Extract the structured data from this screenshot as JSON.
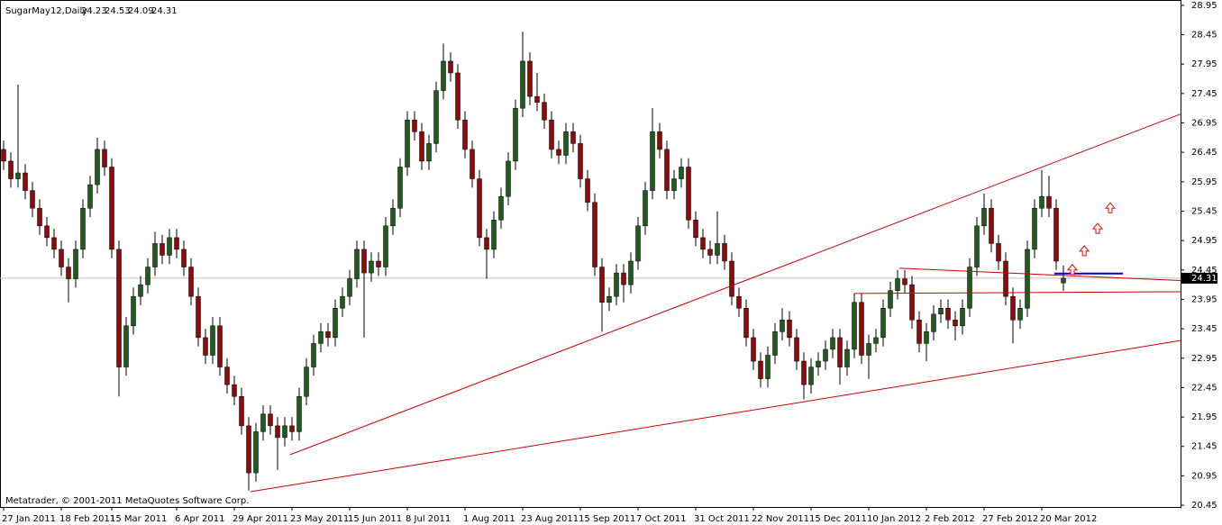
{
  "chart_data": {
    "type": "candlestick",
    "symbol": "SugarMay12,Daily",
    "footer": "Metatrader, © 2001-2011 MetaQuotes Software Corp.",
    "up_color": "#1f5a1f",
    "down_color": "#8b0a0a",
    "wick_color": "#000000",
    "xlim": [
      -0.5,
      163.25
    ],
    "ylim": [
      20.42,
      29.04
    ],
    "yticks": [
      28.95,
      28.45,
      27.95,
      27.45,
      26.95,
      26.45,
      25.95,
      25.45,
      24.95,
      24.45,
      23.95,
      23.45,
      22.95,
      22.45,
      21.95,
      21.45,
      20.95,
      20.45
    ],
    "xticks": [
      {
        "value": 0,
        "label": "27 Jan 2011"
      },
      {
        "value": 8,
        "label": "18 Feb 2011"
      },
      {
        "value": 15,
        "label": "15 Mar 2011"
      },
      {
        "value": 24,
        "label": "6 Apr 2011"
      },
      {
        "value": 32,
        "label": "29 Apr 2011"
      },
      {
        "value": 40,
        "label": "23 May 2011"
      },
      {
        "value": 48,
        "label": "15 Jun 2011"
      },
      {
        "value": 56,
        "label": "8 Jul 2011"
      },
      {
        "value": 64,
        "label": "1 Aug 2011"
      },
      {
        "value": 72,
        "label": "23 Aug 2011"
      },
      {
        "value": 80,
        "label": "15 Sep 2011"
      },
      {
        "value": 88,
        "label": "7 Oct 2011"
      },
      {
        "value": 96,
        "label": "31 Oct 2011"
      },
      {
        "value": 104,
        "label": "22 Nov 2011"
      },
      {
        "value": 112,
        "label": "15 Dec 2011"
      },
      {
        "value": 120,
        "label": "10 Jan 2012"
      },
      {
        "value": 128,
        "label": "2 Feb 2012"
      },
      {
        "value": 136,
        "label": "27 Feb 2012"
      },
      {
        "value": 144,
        "label": "20 Mar 2012"
      }
    ],
    "candles": [
      [
        26.5,
        26.65,
        26.15,
        26.3
      ],
      [
        26.3,
        26.45,
        25.85,
        26.0
      ],
      [
        26.0,
        27.6,
        25.85,
        26.1
      ],
      [
        26.1,
        26.25,
        25.65,
        25.8
      ],
      [
        25.8,
        25.95,
        25.35,
        25.5
      ],
      [
        25.5,
        25.65,
        25.05,
        25.2
      ],
      [
        25.2,
        25.35,
        24.85,
        25.0
      ],
      [
        25.0,
        25.15,
        24.65,
        24.8
      ],
      [
        24.8,
        24.95,
        24.35,
        24.5
      ],
      [
        24.5,
        24.65,
        23.9,
        24.3
      ],
      [
        24.3,
        24.95,
        24.15,
        24.8
      ],
      [
        24.8,
        25.65,
        24.65,
        25.5
      ],
      [
        25.5,
        26.05,
        25.35,
        25.9
      ],
      [
        25.9,
        26.7,
        25.75,
        26.5
      ],
      [
        26.5,
        26.65,
        26.05,
        26.2
      ],
      [
        26.2,
        26.35,
        24.65,
        24.8
      ],
      [
        24.8,
        24.95,
        22.3,
        22.8
      ],
      [
        22.8,
        23.65,
        22.65,
        23.5
      ],
      [
        23.5,
        24.15,
        23.35,
        24.0
      ],
      [
        24.0,
        24.35,
        23.85,
        24.2
      ],
      [
        24.2,
        24.65,
        24.05,
        24.5
      ],
      [
        24.5,
        25.1,
        24.35,
        24.9
      ],
      [
        24.9,
        25.05,
        24.55,
        24.7
      ],
      [
        24.7,
        25.15,
        24.55,
        25.0
      ],
      [
        25.0,
        25.15,
        24.65,
        24.8
      ],
      [
        24.8,
        24.95,
        24.35,
        24.5
      ],
      [
        24.5,
        24.65,
        23.85,
        24.0
      ],
      [
        24.0,
        24.15,
        23.15,
        23.3
      ],
      [
        23.3,
        23.45,
        22.85,
        23.0
      ],
      [
        23.0,
        23.65,
        22.85,
        23.5
      ],
      [
        23.5,
        23.65,
        22.65,
        22.8
      ],
      [
        22.8,
        22.95,
        22.35,
        22.5
      ],
      [
        22.5,
        22.65,
        22.15,
        22.3
      ],
      [
        22.3,
        22.45,
        21.65,
        21.8
      ],
      [
        21.8,
        21.95,
        20.7,
        21.0
      ],
      [
        21.0,
        21.85,
        20.85,
        21.7
      ],
      [
        21.7,
        22.15,
        21.55,
        22.0
      ],
      [
        22.0,
        22.15,
        21.65,
        21.8
      ],
      [
        21.8,
        21.95,
        21.05,
        21.6
      ],
      [
        21.6,
        21.95,
        21.45,
        21.8
      ],
      [
        21.8,
        21.95,
        21.55,
        21.7
      ],
      [
        21.7,
        22.45,
        21.55,
        22.3
      ],
      [
        22.3,
        22.95,
        22.15,
        22.8
      ],
      [
        22.8,
        23.35,
        22.65,
        23.2
      ],
      [
        23.2,
        23.55,
        23.05,
        23.4
      ],
      [
        23.4,
        23.55,
        23.15,
        23.3
      ],
      [
        23.3,
        23.95,
        23.15,
        23.8
      ],
      [
        23.8,
        24.15,
        23.65,
        24.0
      ],
      [
        24.0,
        24.45,
        23.85,
        24.3
      ],
      [
        24.3,
        24.95,
        24.15,
        24.8
      ],
      [
        24.8,
        24.95,
        23.3,
        24.4
      ],
      [
        24.4,
        24.75,
        24.25,
        24.6
      ],
      [
        24.6,
        24.75,
        24.35,
        24.5
      ],
      [
        24.5,
        25.35,
        24.35,
        25.2
      ],
      [
        25.2,
        25.65,
        25.05,
        25.5
      ],
      [
        25.5,
        26.35,
        25.35,
        26.2
      ],
      [
        26.2,
        27.15,
        26.05,
        27.0
      ],
      [
        27.0,
        27.15,
        26.65,
        26.8
      ],
      [
        26.8,
        26.95,
        26.15,
        26.3
      ],
      [
        26.3,
        26.75,
        26.15,
        26.6
      ],
      [
        26.6,
        27.65,
        26.45,
        27.5
      ],
      [
        27.5,
        28.3,
        27.35,
        28.0
      ],
      [
        28.0,
        28.15,
        27.65,
        27.8
      ],
      [
        27.8,
        27.95,
        26.85,
        27.0
      ],
      [
        27.0,
        27.15,
        26.35,
        26.5
      ],
      [
        26.5,
        26.65,
        25.85,
        26.0
      ],
      [
        26.0,
        26.15,
        24.85,
        25.0
      ],
      [
        25.0,
        25.15,
        24.3,
        24.8
      ],
      [
        24.8,
        25.45,
        24.65,
        25.3
      ],
      [
        25.3,
        25.85,
        25.15,
        25.7
      ],
      [
        25.7,
        26.45,
        25.55,
        26.3
      ],
      [
        26.3,
        27.35,
        26.15,
        27.2
      ],
      [
        27.2,
        28.5,
        27.05,
        28.0
      ],
      [
        28.0,
        28.15,
        27.25,
        27.4
      ],
      [
        27.4,
        27.8,
        27.15,
        27.3
      ],
      [
        27.3,
        27.45,
        26.85,
        27.0
      ],
      [
        27.0,
        27.15,
        26.35,
        26.5
      ],
      [
        26.5,
        26.65,
        26.25,
        26.4
      ],
      [
        26.4,
        26.95,
        26.25,
        26.8
      ],
      [
        26.8,
        26.95,
        26.45,
        26.6
      ],
      [
        26.6,
        26.75,
        25.85,
        26.0
      ],
      [
        26.0,
        26.15,
        25.45,
        25.6
      ],
      [
        25.6,
        25.75,
        24.35,
        24.5
      ],
      [
        24.5,
        24.65,
        23.4,
        23.9
      ],
      [
        23.9,
        24.15,
        23.75,
        24.0
      ],
      [
        24.0,
        24.55,
        23.85,
        24.4
      ],
      [
        24.4,
        24.55,
        23.9,
        24.2
      ],
      [
        24.2,
        24.75,
        24.05,
        24.6
      ],
      [
        24.6,
        25.35,
        24.45,
        25.2
      ],
      [
        25.2,
        25.95,
        25.05,
        25.8
      ],
      [
        25.8,
        27.2,
        25.65,
        26.8
      ],
      [
        26.8,
        26.95,
        26.35,
        26.5
      ],
      [
        26.5,
        26.65,
        25.65,
        25.8
      ],
      [
        25.8,
        26.15,
        25.65,
        26.0
      ],
      [
        26.0,
        26.35,
        25.85,
        26.2
      ],
      [
        26.2,
        26.35,
        25.15,
        25.3
      ],
      [
        25.3,
        25.45,
        24.85,
        25.0
      ],
      [
        25.0,
        25.15,
        24.65,
        24.8
      ],
      [
        24.8,
        24.95,
        24.55,
        24.7
      ],
      [
        24.7,
        25.45,
        24.55,
        24.9
      ],
      [
        24.9,
        25.05,
        24.45,
        24.6
      ],
      [
        24.6,
        24.75,
        23.85,
        24.0
      ],
      [
        24.0,
        24.15,
        23.65,
        23.8
      ],
      [
        23.8,
        23.95,
        23.15,
        23.3
      ],
      [
        23.3,
        23.45,
        22.75,
        22.9
      ],
      [
        22.9,
        23.05,
        22.45,
        22.6
      ],
      [
        22.6,
        23.15,
        22.45,
        23.0
      ],
      [
        23.0,
        23.55,
        22.85,
        23.4
      ],
      [
        23.4,
        23.8,
        23.25,
        23.6
      ],
      [
        23.6,
        23.75,
        23.15,
        23.3
      ],
      [
        23.3,
        23.45,
        22.75,
        22.9
      ],
      [
        22.9,
        23.05,
        22.25,
        22.5
      ],
      [
        22.5,
        22.95,
        22.35,
        22.8
      ],
      [
        22.8,
        23.05,
        22.65,
        22.9
      ],
      [
        22.9,
        23.25,
        22.75,
        23.1
      ],
      [
        23.1,
        23.45,
        22.95,
        23.3
      ],
      [
        23.3,
        23.45,
        22.5,
        22.8
      ],
      [
        22.8,
        23.25,
        22.65,
        23.1
      ],
      [
        23.1,
        24.05,
        22.95,
        23.9
      ],
      [
        23.9,
        24.05,
        22.85,
        23.0
      ],
      [
        23.0,
        23.35,
        22.6,
        23.2
      ],
      [
        23.2,
        23.45,
        23.05,
        23.3
      ],
      [
        23.3,
        23.95,
        23.15,
        23.8
      ],
      [
        23.8,
        24.25,
        23.65,
        24.1
      ],
      [
        24.1,
        24.45,
        23.95,
        24.3
      ],
      [
        24.3,
        24.45,
        24.05,
        24.2
      ],
      [
        24.2,
        24.35,
        23.45,
        23.6
      ],
      [
        23.6,
        23.75,
        23.05,
        23.2
      ],
      [
        23.2,
        23.55,
        22.9,
        23.4
      ],
      [
        23.4,
        23.85,
        23.25,
        23.7
      ],
      [
        23.7,
        23.95,
        23.55,
        23.8
      ],
      [
        23.8,
        23.95,
        23.45,
        23.6
      ],
      [
        23.6,
        23.75,
        23.25,
        23.5
      ],
      [
        23.5,
        23.95,
        23.35,
        23.8
      ],
      [
        23.8,
        24.65,
        23.65,
        24.5
      ],
      [
        24.5,
        25.35,
        24.35,
        25.2
      ],
      [
        25.2,
        25.75,
        25.05,
        25.5
      ],
      [
        25.5,
        25.65,
        24.75,
        24.9
      ],
      [
        24.9,
        25.05,
        24.45,
        24.6
      ],
      [
        24.6,
        24.75,
        23.85,
        24.0
      ],
      [
        24.0,
        24.15,
        23.2,
        23.6
      ],
      [
        23.6,
        23.95,
        23.45,
        23.8
      ],
      [
        23.8,
        24.95,
        23.65,
        24.8
      ],
      [
        24.8,
        25.65,
        24.65,
        25.5
      ],
      [
        25.5,
        26.15,
        25.35,
        25.7
      ],
      [
        25.7,
        26.05,
        25.35,
        25.5
      ],
      [
        25.5,
        25.65,
        24.45,
        24.6
      ],
      [
        24.23,
        24.53,
        24.09,
        24.31
      ]
    ],
    "trendlines": [
      {
        "color": "#cc0000",
        "x": [
          39.75,
          163.25
        ],
        "y": [
          21.31,
          27.1
        ]
      },
      {
        "color": "#cc0000",
        "x": [
          34.25,
          163.25
        ],
        "y": [
          20.68,
          23.25
        ]
      },
      {
        "color": "#cc0000",
        "x": [
          124.25,
          163.25
        ],
        "y": [
          24.48,
          24.27
        ]
      },
      {
        "color": "#cc0000",
        "x": [
          118,
          163.25
        ],
        "y": [
          24.05,
          24.08
        ]
      },
      {
        "color": "#0000cc",
        "x": [
          145.75,
          155.25
        ],
        "y": [
          24.39,
          24.39
        ]
      }
    ],
    "arrows": {
      "color": "#ff0000",
      "x": [
        148.25,
        149.9,
        151.75,
        153.5
      ],
      "y": [
        24.45,
        24.77,
        25.15,
        25.5
      ]
    }
  }
}
